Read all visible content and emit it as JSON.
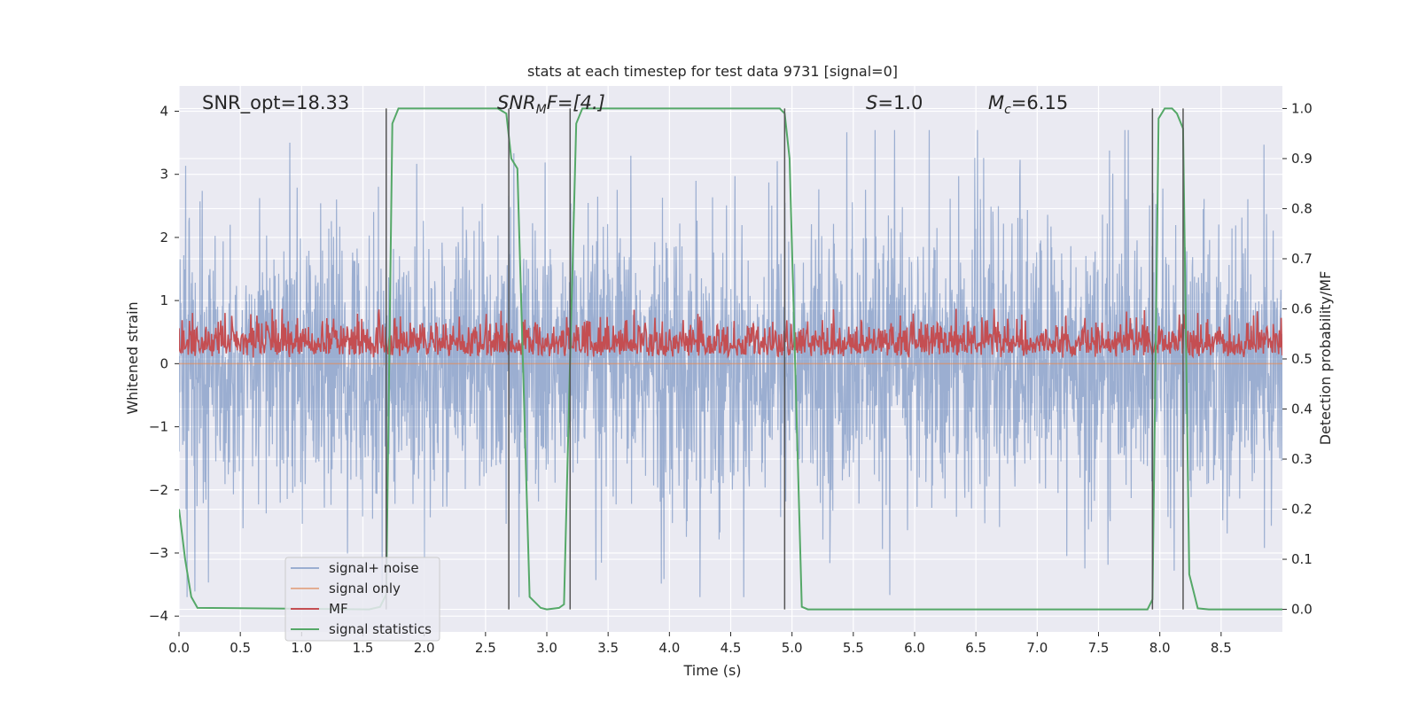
{
  "chart_data": {
    "type": "line",
    "title": "stats at each timestep for test data 9731 [signal=0]",
    "xlabel": "Time (s)",
    "ylabel_left": "Whitened strain",
    "ylabel_right": "Detection probability/MF",
    "xlim": [
      0.0,
      9.0
    ],
    "ylim_left": [
      -4.25,
      4.4
    ],
    "ylim_right": [
      -0.045,
      1.045
    ],
    "x_ticks": [
      "0.0",
      "0.5",
      "1.0",
      "1.5",
      "2.0",
      "2.5",
      "3.0",
      "3.5",
      "4.0",
      "4.5",
      "5.0",
      "5.5",
      "6.0",
      "6.5",
      "7.0",
      "7.5",
      "8.0",
      "8.5"
    ],
    "x_tick_values": [
      0.0,
      0.5,
      1.0,
      1.5,
      2.0,
      2.5,
      3.0,
      3.5,
      4.0,
      4.5,
      5.0,
      5.5,
      6.0,
      6.5,
      7.0,
      7.5,
      8.0,
      8.5
    ],
    "y_left_ticks": [
      "−4",
      "−3",
      "−2",
      "−1",
      "0",
      "1",
      "2",
      "3",
      "4"
    ],
    "y_left_tick_values": [
      -4,
      -3,
      -2,
      -1,
      0,
      1,
      2,
      3,
      4
    ],
    "y_right_ticks": [
      "0.0",
      "0.1",
      "0.2",
      "0.3",
      "0.4",
      "0.5",
      "0.6",
      "0.7",
      "0.8",
      "0.9",
      "1.0"
    ],
    "y_right_tick_values": [
      0.0,
      0.1,
      0.2,
      0.3,
      0.4,
      0.5,
      0.6,
      0.7,
      0.8,
      0.9,
      1.0
    ],
    "annotations": {
      "snr_opt": "SNR_opt=18.33",
      "snr_mf_main": "SNR",
      "snr_mf_sub": "M",
      "snr_mf_rest": "F=[4.]",
      "s_sym": "S",
      "s_val": "=1.0",
      "mc_sym": "M",
      "mc_sub": "c",
      "mc_val": "=6.15"
    },
    "vertical_lines_x": [
      1.69,
      2.69,
      3.19,
      4.94,
      7.94,
      8.19
    ],
    "series": [
      {
        "name": "signal+ noise",
        "axis": "left",
        "color": "#4c72b0",
        "style": "noise",
        "amplitude_envelope": [
          -3.7,
          3.7
        ]
      },
      {
        "name": "signal only",
        "axis": "left",
        "color": "#dd8452",
        "style": "flat",
        "values": [
          0
        ]
      },
      {
        "name": "MF",
        "axis": "right",
        "color": "#c44e52",
        "style": "noise",
        "baseline": 0.5,
        "range": [
          0.49,
          0.6
        ]
      },
      {
        "name": "signal statistics",
        "axis": "right",
        "color": "#55a868",
        "x": [
          0.0,
          0.05,
          0.1,
          0.15,
          1.55,
          1.64,
          1.69,
          1.74,
          1.79,
          1.84,
          2.6,
          2.67,
          2.71,
          2.76,
          2.86,
          2.95,
          3.0,
          3.1,
          3.14,
          3.19,
          3.24,
          3.29,
          3.34,
          4.9,
          4.94,
          4.98,
          5.08,
          5.13,
          7.9,
          7.94,
          7.99,
          8.04,
          8.1,
          8.14,
          8.19,
          8.24,
          8.31,
          8.4,
          9.0
        ],
        "values": [
          0.2,
          0.1,
          0.025,
          0.003,
          0.0,
          0.005,
          0.03,
          0.97,
          1.0,
          1.0,
          1.0,
          0.99,
          0.9,
          0.88,
          0.025,
          0.003,
          0.0,
          0.003,
          0.01,
          0.5,
          0.97,
          1.0,
          1.0,
          1.0,
          0.99,
          0.9,
          0.005,
          0.0,
          0.0,
          0.02,
          0.98,
          1.0,
          1.0,
          0.99,
          0.96,
          0.07,
          0.002,
          0.0,
          0.0
        ]
      }
    ],
    "legend": {
      "position": "lower-left",
      "entries": [
        "signal+ noise",
        "signal only",
        "MF",
        "signal statistics"
      ]
    },
    "grid": true
  }
}
